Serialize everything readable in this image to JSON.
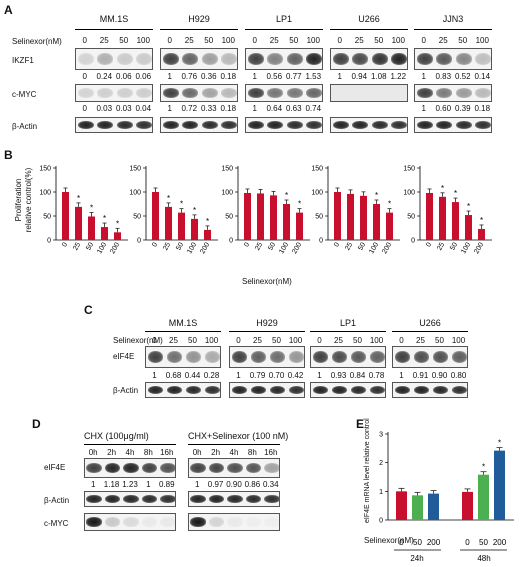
{
  "panelA": {
    "label": "A",
    "cell_lines": [
      "MM.1S",
      "H929",
      "LP1",
      "U266",
      "JJN3"
    ],
    "treatment_label": "Selinexor(nM)",
    "doses": [
      "0",
      "25",
      "50",
      "100"
    ],
    "rows": [
      "IKZF1",
      "c-MYC",
      "β-Actin"
    ],
    "ikzf1_values": [
      [
        "0",
        "0.24",
        "0.06",
        "0.06"
      ],
      [
        "1",
        "0.76",
        "0.36",
        "0.18"
      ],
      [
        "1",
        "0.56",
        "0.77",
        "1.53"
      ],
      [
        "1",
        "0.94",
        "1.08",
        "1.22"
      ],
      [
        "1",
        "0.83",
        "0.52",
        "0.14"
      ]
    ],
    "cmyc_values": [
      [
        "0",
        "0.03",
        "0.03",
        "0.04"
      ],
      [
        "1",
        "0.72",
        "0.33",
        "0.18"
      ],
      [
        "1",
        "0.64",
        "0.63",
        "0.74"
      ],
      null,
      [
        "1",
        "0.60",
        "0.39",
        "0.18"
      ]
    ]
  },
  "panelB": {
    "label": "B",
    "ylabel_line1": "Proliferation",
    "ylabel_line2": "relative control(%)",
    "xlabel": "Selinexor(nM)",
    "yticks": [
      "0",
      "50",
      "100",
      "150"
    ]
  },
  "panelC": {
    "label": "C",
    "cell_lines": [
      "MM.1S",
      "H929",
      "LP1",
      "U266"
    ],
    "treatment_label": "Selinexor(nM)",
    "doses": [
      "0",
      "25",
      "50",
      "100"
    ],
    "rows": [
      "eIF4E",
      "β-Actin"
    ],
    "eif4e_values": [
      [
        "1",
        "0.68",
        "0.44",
        "0.28"
      ],
      [
        "1",
        "0.79",
        "0.70",
        "0.42"
      ],
      [
        "1",
        "0.93",
        "0.84",
        "0.78"
      ],
      [
        "1",
        "0.91",
        "0.90",
        "0.80"
      ]
    ]
  },
  "panelD": {
    "label": "D",
    "conditions": [
      "CHX (100μg/ml)",
      "CHX+Selinexor (100 nM)"
    ],
    "timepoints": [
      "0h",
      "2h",
      "4h",
      "8h",
      "16h"
    ],
    "rows": [
      "eIF4E",
      "β-Actin",
      "c-MYC"
    ],
    "eif4e_values": [
      [
        "1",
        "1.18",
        "1.23",
        "1",
        "0.89"
      ],
      [
        "1",
        "0.97",
        "0.90",
        "0.86",
        "0.34"
      ]
    ]
  },
  "panelE": {
    "label": "E",
    "ylabel": "eIF4E mRNA level relative control",
    "treatment_label": "Selinexor(nM)",
    "yticks": [
      "0",
      "1",
      "2",
      "3"
    ],
    "groups": [
      "24h",
      "48h"
    ],
    "dose_labels": [
      "0",
      "50",
      "200",
      "0",
      "50",
      "200"
    ]
  },
  "significance_mark": "*",
  "colors": {
    "bar_red": "#c8102e",
    "bar_green": "#4caf50",
    "bar_blue": "#1f5c99",
    "error": "#222222"
  },
  "chart_data": [
    {
      "type": "bar",
      "cell_line": "MM.1S",
      "categories": [
        "0",
        "25",
        "50",
        "100",
        "200"
      ],
      "values": [
        100,
        69,
        49,
        27,
        16
      ],
      "ylim": [
        0,
        150
      ]
    },
    {
      "type": "bar",
      "cell_line": "H929",
      "categories": [
        "0",
        "25",
        "50",
        "100",
        "200"
      ],
      "values": [
        100,
        69,
        57,
        44,
        21
      ],
      "ylim": [
        0,
        150
      ]
    },
    {
      "type": "bar",
      "cell_line": "LP1",
      "categories": [
        "0",
        "25",
        "50",
        "100",
        "200"
      ],
      "values": [
        98,
        97,
        93,
        75,
        57
      ],
      "ylim": [
        0,
        150
      ]
    },
    {
      "type": "bar",
      "cell_line": "U266",
      "categories": [
        "0",
        "25",
        "50",
        "100",
        "200"
      ],
      "values": [
        100,
        96,
        92,
        75,
        57
      ],
      "ylim": [
        0,
        150
      ]
    },
    {
      "type": "bar",
      "cell_line": "JJN3",
      "categories": [
        "0",
        "25",
        "50",
        "100",
        "200"
      ],
      "values": [
        98,
        90,
        79,
        52,
        23
      ],
      "ylim": [
        0,
        150
      ]
    },
    {
      "type": "bar",
      "categories": [
        "0",
        "50",
        "200",
        "0",
        "50",
        "200"
      ],
      "groups": [
        "24h",
        "24h",
        "24h",
        "48h",
        "48h",
        "48h"
      ],
      "values": [
        1.0,
        0.86,
        0.92,
        0.98,
        1.58,
        2.42
      ],
      "ylim": [
        0,
        3
      ]
    }
  ]
}
